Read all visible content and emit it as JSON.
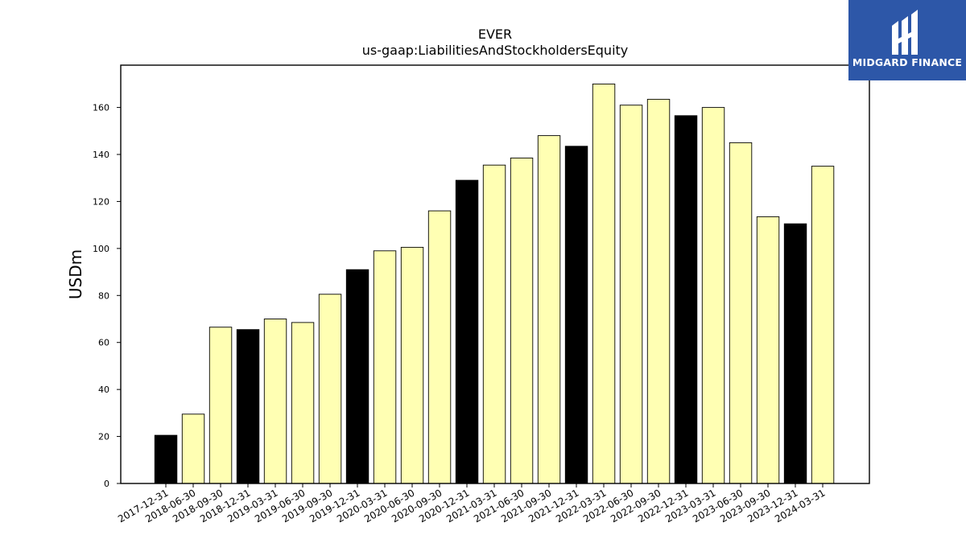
{
  "brand": {
    "name": "MIDGARD FINANCE",
    "background": "#2d57a8",
    "text_color": "#ffffff",
    "icon": "midgard-logo-icon"
  },
  "chart_data": {
    "type": "bar",
    "title": "EVER",
    "subtitle": "us-gaap:LiabilitiesAndStockholdersEquity",
    "xlabel": "",
    "ylabel": "USDm",
    "ylim": [
      0,
      178
    ],
    "yticks": [
      0,
      20,
      40,
      60,
      80,
      100,
      120,
      140,
      160
    ],
    "grid": false,
    "categories": [
      "2017-12-31",
      "2018-06-30",
      "2018-09-30",
      "2018-12-31",
      "2019-03-31",
      "2019-06-30",
      "2019-09-30",
      "2019-12-31",
      "2020-03-31",
      "2020-06-30",
      "2020-09-30",
      "2020-12-31",
      "2021-03-31",
      "2021-06-30",
      "2021-09-30",
      "2021-12-31",
      "2022-03-31",
      "2022-06-30",
      "2022-09-30",
      "2022-12-31",
      "2023-03-31",
      "2023-06-30",
      "2023-09-30",
      "2023-12-31",
      "2024-03-31"
    ],
    "values": [
      20.5,
      29.5,
      66.5,
      65.5,
      70.0,
      68.5,
      80.5,
      91.0,
      99.0,
      100.5,
      116.0,
      129.0,
      135.5,
      138.5,
      148.0,
      143.5,
      170.0,
      161.0,
      163.5,
      156.5,
      160.0,
      145.0,
      113.5,
      110.5,
      135.0
    ],
    "highlight_categories": [
      "2017-12-31",
      "2018-12-31",
      "2019-12-31",
      "2020-12-31",
      "2021-12-31",
      "2022-12-31",
      "2023-12-31"
    ],
    "colors": {
      "bar": "#ffffb3",
      "highlight": "#000000",
      "edge": "#000000"
    }
  }
}
